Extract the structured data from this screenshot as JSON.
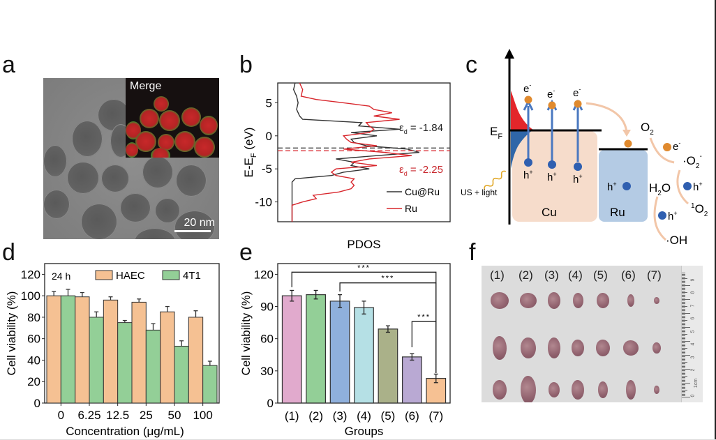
{
  "figure": {
    "panel_labels": [
      "a",
      "b",
      "c",
      "d",
      "e",
      "f"
    ]
  },
  "panel_a": {
    "inset_label": "Merge",
    "scale_bar": "20 nm"
  },
  "panel_b": {
    "xlabel": "PDOS",
    "ylabel": "E-E",
    "ylabel_sub": "F",
    "ylabel_unit": " (eV)",
    "annotation_cu": {
      "prefix": "ε",
      "sub": "d",
      "text": " = -1.84"
    },
    "annotation_ru": {
      "prefix": "ε",
      "sub": "d",
      "text": " = -2.25"
    },
    "legend": [
      "Cu@Ru",
      "Ru"
    ]
  },
  "panel_c": {
    "ef_label": "E",
    "ef_sub": "F",
    "electron_label": "e",
    "hole_label": "h",
    "stimulus": "US + light",
    "cu_label": "Cu",
    "ru_label": "Ru",
    "o2": "O",
    "h2o": "H",
    "superoxide": "·O",
    "singlet": "O",
    "hydroxyl": "·OH"
  },
  "panel_f": {
    "group_labels": [
      "(1)",
      "(2)",
      "(3)",
      "(4)",
      "(5)",
      "(6)",
      "(7)"
    ],
    "ruler_marks": [
      "0",
      "1cm",
      "2",
      "3",
      "4",
      "5",
      "6",
      "7",
      "8",
      "9"
    ]
  },
  "colors": {
    "haec": "#f5c193",
    "t4t1": "#93cf97",
    "pdos_cu": "#333333",
    "pdos_ru": "#d8262c",
    "cu_block": "#f6dccb",
    "ru_block": "#b4cbe4",
    "electron": "#e08a2e",
    "hole": "#2f5fb0",
    "arrow_blue": "#4a78c0",
    "arrow_peach": "#f2c6a8"
  },
  "chart_data": [
    {
      "id": "b",
      "type": "line",
      "title": "",
      "xlabel": "PDOS",
      "ylabel": "E-E_F (eV)",
      "ylim": [
        -13,
        8
      ],
      "yticks": [
        5,
        0,
        -5,
        -10
      ],
      "series": [
        {
          "name": "Cu@Ru",
          "color": "#333333",
          "d_band_center": -1.84,
          "profile": [
            [
              8,
              0.05
            ],
            [
              7,
              0.04
            ],
            [
              6,
              0.06
            ],
            [
              5,
              0.07
            ],
            [
              4,
              0.06
            ],
            [
              3,
              0.08
            ],
            [
              2.5,
              0.1
            ],
            [
              2,
              0.45
            ],
            [
              1.5,
              0.5
            ],
            [
              1,
              0.7
            ],
            [
              0.5,
              0.45
            ],
            [
              0,
              0.55
            ],
            [
              -0.5,
              0.45
            ],
            [
              -1,
              0.4
            ],
            [
              -1.5,
              0.55
            ],
            [
              -2,
              0.75
            ],
            [
              -2.5,
              0.9
            ],
            [
              -3,
              0.55
            ],
            [
              -3.5,
              0.35
            ],
            [
              -4,
              0.4
            ],
            [
              -4.5,
              0.45
            ],
            [
              -5,
              0.5
            ],
            [
              -5.5,
              0.4
            ],
            [
              -6,
              0.25
            ],
            [
              -6.5,
              0.05
            ],
            [
              -7,
              0.03
            ],
            [
              -13,
              0.03
            ]
          ]
        },
        {
          "name": "Ru",
          "color": "#d8262c",
          "d_band_center": -2.25,
          "profile": [
            [
              8,
              0.08
            ],
            [
              7,
              0.1
            ],
            [
              6,
              0.12
            ],
            [
              5.5,
              0.15
            ],
            [
              5,
              0.4
            ],
            [
              4.5,
              0.5
            ],
            [
              4,
              0.6
            ],
            [
              3.5,
              0.65
            ],
            [
              3,
              0.6
            ],
            [
              2.5,
              0.7
            ],
            [
              2,
              0.55
            ],
            [
              1.5,
              0.5
            ],
            [
              1,
              0.6
            ],
            [
              0.5,
              0.5
            ],
            [
              0,
              0.4
            ],
            [
              -0.5,
              0.35
            ],
            [
              -1,
              0.45
            ],
            [
              -1.5,
              0.55
            ],
            [
              -2,
              0.4
            ],
            [
              -2.5,
              0.6
            ],
            [
              -3,
              0.85
            ],
            [
              -3.5,
              0.5
            ],
            [
              -4,
              0.45
            ],
            [
              -4.5,
              0.55
            ],
            [
              -5,
              0.35
            ],
            [
              -5.5,
              0.25
            ],
            [
              -6,
              0.35
            ],
            [
              -6.5,
              0.4
            ],
            [
              -7,
              0.45
            ],
            [
              -7.5,
              0.4
            ],
            [
              -8,
              0.45
            ],
            [
              -8.5,
              0.3
            ],
            [
              -9,
              0.2
            ],
            [
              -9.5,
              0.15
            ],
            [
              -10,
              0.1
            ],
            [
              -10.5,
              0.03
            ],
            [
              -13,
              0.03
            ]
          ]
        }
      ],
      "legend_position": "bottom-right"
    },
    {
      "id": "d",
      "type": "bar",
      "title": "",
      "annotation": "24 h",
      "xlabel": "Concentration (μg/mL)",
      "ylabel": "Cell viability (%)",
      "ylim": [
        0,
        130
      ],
      "yticks": [
        0,
        20,
        40,
        60,
        80,
        100,
        120
      ],
      "categories": [
        "0",
        "6.25",
        "12.5",
        "25",
        "50",
        "100"
      ],
      "series": [
        {
          "name": "HAEC",
          "color": "#f5c193",
          "values": [
            100,
            99,
            96,
            94,
            85,
            80
          ],
          "errors": [
            4,
            4,
            3,
            3,
            5,
            6
          ]
        },
        {
          "name": "4T1",
          "color": "#93cf97",
          "values": [
            100,
            80,
            75,
            68,
            53,
            35
          ],
          "errors": [
            6,
            5,
            2,
            6,
            5,
            4
          ]
        }
      ],
      "legend_position": "top"
    },
    {
      "id": "e",
      "type": "bar",
      "title": "",
      "xlabel": "Groups",
      "ylabel": "Cell viability (%)",
      "ylim": [
        0,
        130
      ],
      "yticks": [
        0,
        30,
        60,
        90,
        120
      ],
      "categories": [
        "(1)",
        "(2)",
        "(3)",
        "(4)",
        "(5)",
        "(6)",
        "(7)"
      ],
      "values": [
        100,
        101,
        95,
        89,
        69,
        43,
        23
      ],
      "errors": [
        5,
        4,
        6,
        6,
        3,
        3,
        4
      ],
      "colors": [
        "#e1aacd",
        "#93cf97",
        "#8fb0dc",
        "#b5e0e5",
        "#aab189",
        "#b9a9d3",
        "#f6c193"
      ],
      "significance": [
        {
          "from": 0,
          "to": 6,
          "label": "***"
        },
        {
          "from": 2,
          "to": 6,
          "label": "***"
        },
        {
          "from": 5,
          "to": 6,
          "label": "***"
        }
      ]
    }
  ]
}
